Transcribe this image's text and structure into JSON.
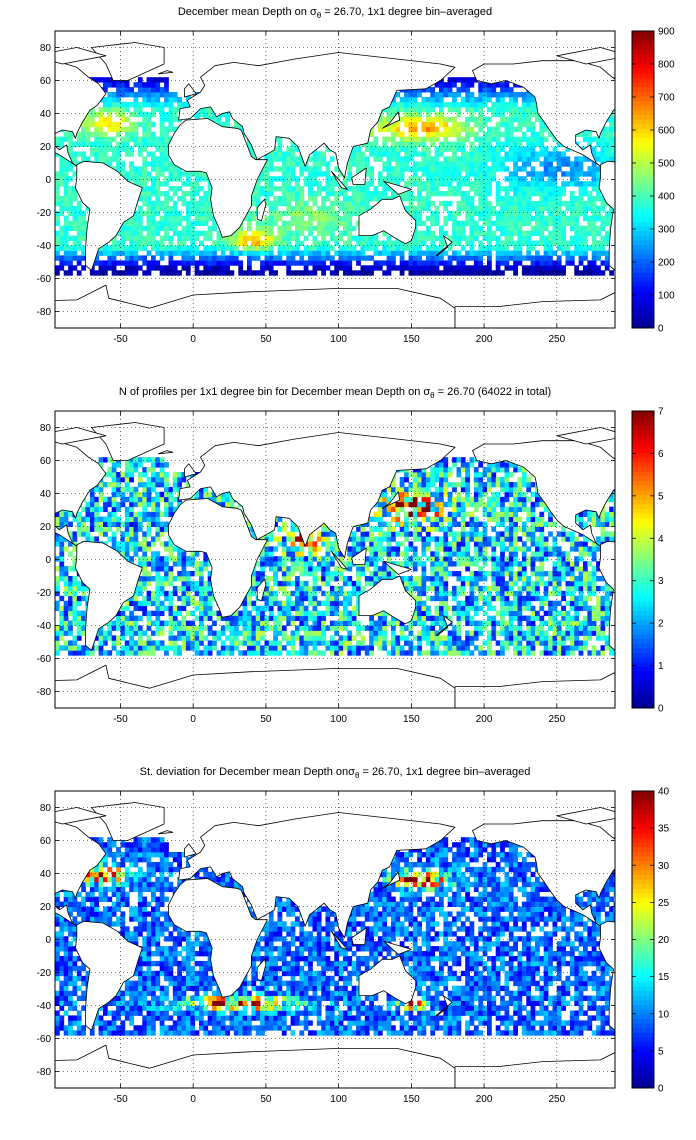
{
  "colormap": [
    "#00008f",
    "#0000ff",
    "#0080ff",
    "#00ffff",
    "#80ff80",
    "#ffff00",
    "#ff8000",
    "#ff0000",
    "#800000"
  ],
  "chart_data": [
    {
      "type": "heatmap",
      "title_prefix": "December mean Depth on ",
      "title_suffix": " = 26.70, 1x1 degree bin–averaged",
      "xlim": [
        -95,
        290
      ],
      "ylim": [
        -90,
        90
      ],
      "xticks": [
        -50,
        0,
        50,
        100,
        150,
        200,
        250
      ],
      "yticks": [
        -80,
        -60,
        -40,
        -20,
        0,
        20,
        40,
        60,
        80
      ],
      "clim": [
        0,
        900
      ],
      "cticks": [
        0,
        100,
        200,
        300,
        400,
        500,
        600,
        700,
        800,
        900
      ],
      "grid": "dotted"
    },
    {
      "type": "heatmap",
      "title_prefix": "N of profiles per 1x1 degree bin for December mean Depth on ",
      "title_suffix": " = 26.70 (64022 in total)",
      "xlim": [
        -95,
        290
      ],
      "ylim": [
        -90,
        90
      ],
      "xticks": [
        -50,
        0,
        50,
        100,
        150,
        200,
        250
      ],
      "yticks": [
        -80,
        -60,
        -40,
        -20,
        0,
        20,
        40,
        60,
        80
      ],
      "clim": [
        0,
        7
      ],
      "cticks": [
        0,
        1,
        2,
        3,
        4,
        5,
        6,
        7
      ],
      "grid": "dotted"
    },
    {
      "type": "heatmap",
      "title_prefix": "St. deviation for December mean Depth on",
      "title_suffix": " = 26.70, 1x1 degree bin–averaged",
      "xlim": [
        -95,
        290
      ],
      "ylim": [
        -90,
        90
      ],
      "xticks": [
        -50,
        0,
        50,
        100,
        150,
        200,
        250
      ],
      "yticks": [
        -80,
        -60,
        -40,
        -20,
        0,
        20,
        40,
        60,
        80
      ],
      "clim": [
        0,
        40
      ],
      "cticks": [
        0,
        5,
        10,
        15,
        20,
        25,
        30,
        35,
        40
      ],
      "grid": "dotted"
    }
  ]
}
